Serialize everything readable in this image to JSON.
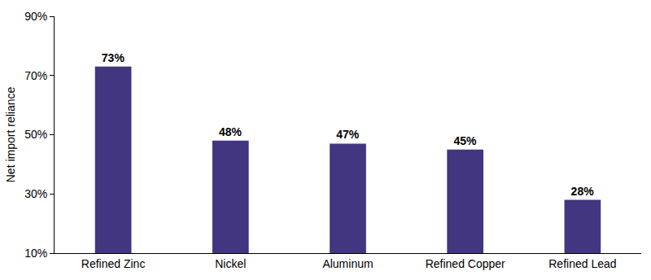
{
  "chart_data": {
    "type": "bar",
    "y_label": "Net import reliance",
    "categories": [
      "Refined Zinc",
      "Nickel",
      "Aluminum",
      "Refined Copper",
      "Refined Lead"
    ],
    "values": [
      73,
      48,
      47,
      45,
      28
    ],
    "value_labels": [
      "73%",
      "48%",
      "47%",
      "45%",
      "28%"
    ],
    "color": "#433680",
    "ylim": [
      10,
      90
    ],
    "yticks": [
      {
        "value": 10,
        "label": "10%"
      },
      {
        "value": 30,
        "label": "30%"
      },
      {
        "value": 50,
        "label": "50%"
      },
      {
        "value": 70,
        "label": "70%"
      },
      {
        "value": 90,
        "label": "90%"
      }
    ],
    "grid": false,
    "data_labels": true
  }
}
